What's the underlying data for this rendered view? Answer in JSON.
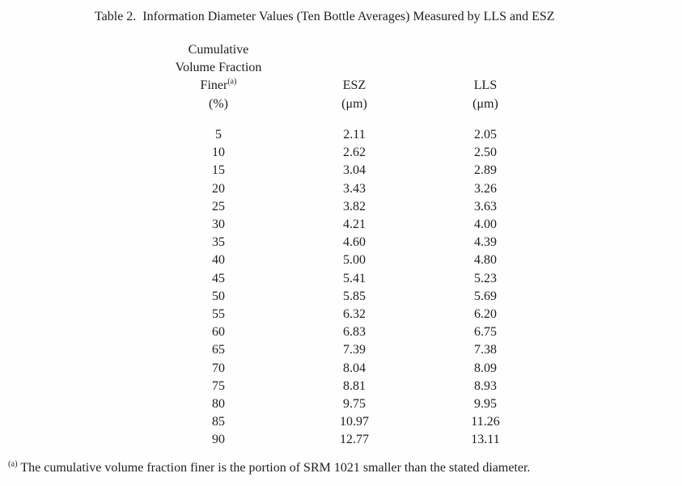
{
  "title": "Table 2.  Information Diameter Values (Ten Bottle Averages) Measured by LLS and ESZ",
  "table": {
    "header": {
      "col1_line1": "Cumulative",
      "col1_line2": "Volume Fraction",
      "col1_finer": "Finer",
      "col1_finer_sup": "(a)",
      "col1_unit": "(%)",
      "col2_label": "ESZ",
      "col2_unit": "(μm)",
      "col3_label": "LLS",
      "col3_unit": "(μm)"
    },
    "rows": [
      [
        "5",
        "2.11",
        "2.05"
      ],
      [
        "10",
        "2.62",
        "2.50"
      ],
      [
        "15",
        "3.04",
        "2.89"
      ],
      [
        "20",
        "3.43",
        "3.26"
      ],
      [
        "25",
        "3.82",
        "3.63"
      ],
      [
        "30",
        "4.21",
        "4.00"
      ],
      [
        "35",
        "4.60",
        "4.39"
      ],
      [
        "40",
        "5.00",
        "4.80"
      ],
      [
        "45",
        "5.41",
        "5.23"
      ],
      [
        "50",
        "5.85",
        "5.69"
      ],
      [
        "55",
        "6.32",
        "6.20"
      ],
      [
        "60",
        "6.83",
        "6.75"
      ],
      [
        "65",
        "7.39",
        "7.38"
      ],
      [
        "70",
        "8.04",
        "8.09"
      ],
      [
        "75",
        "8.81",
        "8.93"
      ],
      [
        "80",
        "9.75",
        "9.95"
      ],
      [
        "85",
        "10.97",
        "11.26"
      ],
      [
        "90",
        "12.77",
        "13.11"
      ]
    ]
  },
  "footnote": {
    "marker": "(a)",
    "text": " The cumulative volume fraction finer is the portion of SRM 1021 smaller than the stated diameter."
  },
  "chart_data": {
    "type": "table",
    "title": "Table 2.  Information Diameter Values (Ten Bottle Averages) Measured by LLS and ESZ",
    "columns": [
      "Cumulative Volume Fraction Finer(a) (%)",
      "ESZ (μm)",
      "LLS (μm)"
    ],
    "cumulative_volume_fraction_finer_pct": [
      5,
      10,
      15,
      20,
      25,
      30,
      35,
      40,
      45,
      50,
      55,
      60,
      65,
      70,
      75,
      80,
      85,
      90
    ],
    "esz_um": [
      2.11,
      2.62,
      3.04,
      3.43,
      3.82,
      4.21,
      4.6,
      5.0,
      5.41,
      5.85,
      6.32,
      6.83,
      7.39,
      8.04,
      8.81,
      9.75,
      10.97,
      12.77
    ],
    "lls_um": [
      2.05,
      2.5,
      2.89,
      3.26,
      3.63,
      4.0,
      4.39,
      4.8,
      5.23,
      5.69,
      6.2,
      6.75,
      7.38,
      8.09,
      8.93,
      9.95,
      11.26,
      13.11
    ],
    "footnote": "(a) The cumulative volume fraction finer is the portion of SRM 1021 smaller than the stated diameter."
  }
}
